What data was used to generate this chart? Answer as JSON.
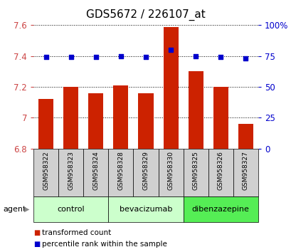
{
  "title": "GDS5672 / 226107_at",
  "samples": [
    "GSM958322",
    "GSM958323",
    "GSM958324",
    "GSM958328",
    "GSM958329",
    "GSM958330",
    "GSM958325",
    "GSM958326",
    "GSM958327"
  ],
  "red_values": [
    7.12,
    7.2,
    7.16,
    7.21,
    7.16,
    7.59,
    7.3,
    7.2,
    6.96
  ],
  "blue_values": [
    74,
    74,
    74,
    75,
    74,
    80,
    75,
    74,
    73
  ],
  "groups": [
    {
      "label": "control",
      "start": 0,
      "end": 3,
      "color": "#ccffcc"
    },
    {
      "label": "bevacizumab",
      "start": 3,
      "end": 6,
      "color": "#ccffcc"
    },
    {
      "label": "dibenzazepine",
      "start": 6,
      "end": 9,
      "color": "#55ee55"
    }
  ],
  "ylim_left": [
    6.8,
    7.6
  ],
  "ylim_right": [
    0,
    100
  ],
  "yticks_left": [
    6.8,
    7.0,
    7.2,
    7.4,
    7.6
  ],
  "yticks_right": [
    0,
    25,
    50,
    75,
    100
  ],
  "ytick_labels_right": [
    "0",
    "25",
    "50",
    "75",
    "100%"
  ],
  "bar_color": "#cc2200",
  "dot_color": "#0000cc",
  "bar_width": 0.6,
  "background_color": "#ffffff",
  "plot_bg_color": "#ffffff",
  "title_fontsize": 11,
  "legend_items": [
    {
      "label": "transformed count",
      "color": "#cc2200"
    },
    {
      "label": "percentile rank within the sample",
      "color": "#0000cc"
    }
  ],
  "agent_label": "agent",
  "cell_bg": "#d0d0d0"
}
